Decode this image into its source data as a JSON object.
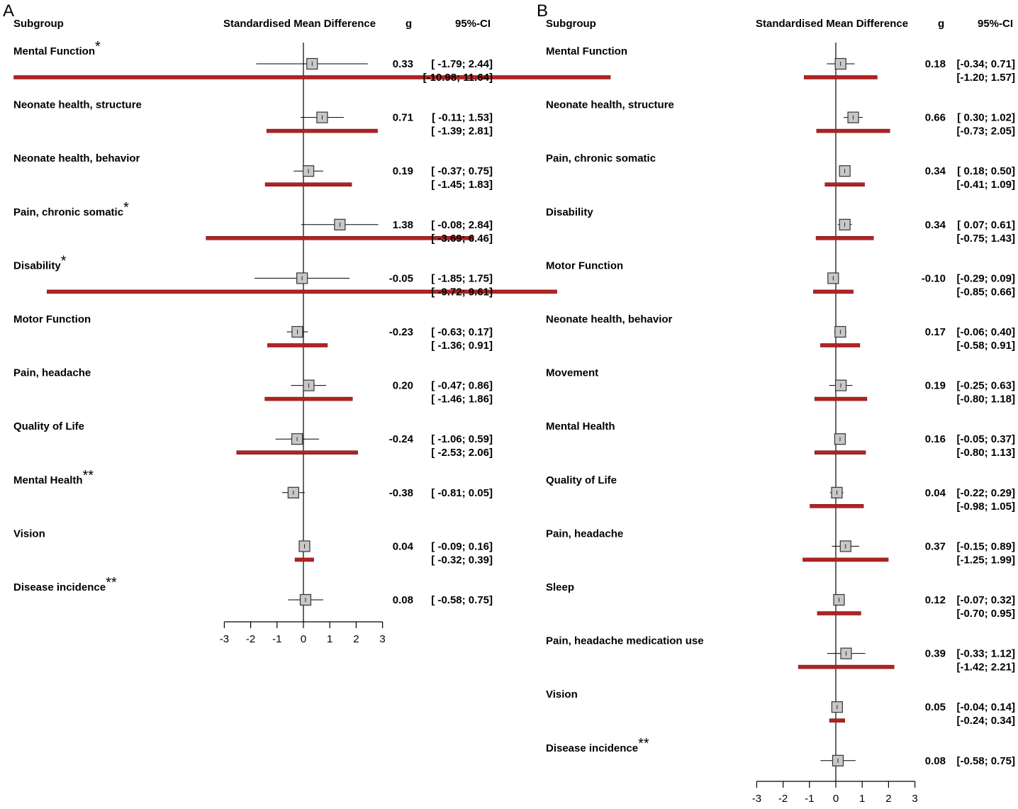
{
  "chart_data": [
    {
      "type": "forest",
      "panel": "A",
      "headers": {
        "subgroup": "Subgroup",
        "effect": "Standardised Mean Difference",
        "g": "g",
        "ci": "95%-CI"
      },
      "xlim": [
        -3,
        3
      ],
      "xticks": [
        -3,
        -2,
        -1,
        0,
        1,
        2,
        3
      ],
      "tick_labels": [
        "-3",
        "-2",
        "-1",
        "0",
        "1",
        "2",
        "3"
      ],
      "reference_line": 0,
      "rows": [
        {
          "label": "Mental Function",
          "mark": "*",
          "g": 0.33,
          "ci": [
            -1.79,
            2.44
          ],
          "pi": [
            -10.98,
            11.64
          ],
          "g_text": "0.33",
          "ci_text": "[ -1.79;  2.44]",
          "pi_text": "[-10.98; 11.64]"
        },
        {
          "label": "Neonate health, structure",
          "mark": "",
          "g": 0.71,
          "ci": [
            -0.11,
            1.53
          ],
          "pi": [
            -1.39,
            2.81
          ],
          "g_text": "0.71",
          "ci_text": "[ -0.11;  1.53]",
          "pi_text": "[ -1.39;  2.81]"
        },
        {
          "label": "Neonate health, behavior",
          "mark": "",
          "g": 0.19,
          "ci": [
            -0.37,
            0.75
          ],
          "pi": [
            -1.45,
            1.83
          ],
          "g_text": "0.19",
          "ci_text": "[ -0.37;  0.75]",
          "pi_text": "[ -1.45;  1.83]"
        },
        {
          "label": "Pain, chronic somatic",
          "mark": "*",
          "g": 1.38,
          "ci": [
            -0.08,
            2.84
          ],
          "pi": [
            -3.69,
            6.46
          ],
          "g_text": "1.38",
          "ci_text": "[ -0.08;  2.84]",
          "pi_text": "[ -3.69;  6.46]"
        },
        {
          "label": "Disability",
          "mark": "*",
          "g": -0.05,
          "ci": [
            -1.85,
            1.75
          ],
          "pi": [
            -9.72,
            9.61
          ],
          "g_text": "-0.05",
          "ci_text": "[ -1.85;  1.75]",
          "pi_text": "[ -9.72;  9.61]"
        },
        {
          "label": "Motor Function",
          "mark": "",
          "g": -0.23,
          "ci": [
            -0.63,
            0.17
          ],
          "pi": [
            -1.36,
            0.91
          ],
          "g_text": "-0.23",
          "ci_text": "[ -0.63;  0.17]",
          "pi_text": "[ -1.36;  0.91]"
        },
        {
          "label": "Pain, headache",
          "mark": "",
          "g": 0.2,
          "ci": [
            -0.47,
            0.86
          ],
          "pi": [
            -1.46,
            1.86
          ],
          "g_text": "0.20",
          "ci_text": "[ -0.47;  0.86]",
          "pi_text": "[ -1.46;  1.86]"
        },
        {
          "label": "Quality of Life",
          "mark": "",
          "g": -0.24,
          "ci": [
            -1.06,
            0.59
          ],
          "pi": [
            -2.53,
            2.06
          ],
          "g_text": "-0.24",
          "ci_text": "[ -1.06;  0.59]",
          "pi_text": "[ -2.53;  2.06]"
        },
        {
          "label": "Mental Health",
          "mark": "**",
          "g": -0.38,
          "ci": [
            -0.81,
            0.05
          ],
          "pi": null,
          "g_text": "-0.38",
          "ci_text": "[ -0.81;  0.05]",
          "pi_text": ""
        },
        {
          "label": "Vision",
          "mark": "",
          "g": 0.04,
          "ci": [
            -0.09,
            0.16
          ],
          "pi": [
            -0.32,
            0.39
          ],
          "g_text": "0.04",
          "ci_text": "[ -0.09;  0.16]",
          "pi_text": "[ -0.32;  0.39]"
        },
        {
          "label": "Disease incidence",
          "mark": "**",
          "g": 0.08,
          "ci": [
            -0.58,
            0.75
          ],
          "pi": null,
          "g_text": "0.08",
          "ci_text": "[ -0.58;  0.75]",
          "pi_text": ""
        }
      ]
    },
    {
      "type": "forest",
      "panel": "B",
      "headers": {
        "subgroup": "Subgroup",
        "effect": "Standardised Mean Difference",
        "g": "g",
        "ci": "95%-CI"
      },
      "xlim": [
        -3,
        3
      ],
      "xticks": [
        -3,
        -2,
        -1,
        0,
        1,
        2,
        3
      ],
      "tick_labels": [
        "-3",
        "-2",
        "-1",
        "0",
        "1",
        "2",
        "3"
      ],
      "reference_line": 0,
      "rows": [
        {
          "label": "Mental Function",
          "mark": "",
          "g": 0.18,
          "ci": [
            -0.34,
            0.71
          ],
          "pi": [
            -1.2,
            1.57
          ],
          "g_text": "0.18",
          "ci_text": "[-0.34;  0.71]",
          "pi_text": "[-1.20;  1.57]"
        },
        {
          "label": "Neonate health, structure",
          "mark": "",
          "g": 0.66,
          "ci": [
            0.3,
            1.02
          ],
          "pi": [
            -0.73,
            2.05
          ],
          "g_text": "0.66",
          "ci_text": "[ 0.30;  1.02]",
          "pi_text": "[-0.73;  2.05]"
        },
        {
          "label": "Pain, chronic somatic",
          "mark": "",
          "g": 0.34,
          "ci": [
            0.18,
            0.5
          ],
          "pi": [
            -0.41,
            1.09
          ],
          "g_text": "0.34",
          "ci_text": "[ 0.18;  0.50]",
          "pi_text": "[-0.41;  1.09]"
        },
        {
          "label": "Disability",
          "mark": "",
          "g": 0.34,
          "ci": [
            0.07,
            0.61
          ],
          "pi": [
            -0.75,
            1.43
          ],
          "g_text": "0.34",
          "ci_text": "[ 0.07;  0.61]",
          "pi_text": "[-0.75;  1.43]"
        },
        {
          "label": "Motor Function",
          "mark": "",
          "g": -0.1,
          "ci": [
            -0.29,
            0.09
          ],
          "pi": [
            -0.85,
            0.66
          ],
          "g_text": "-0.10",
          "ci_text": "[-0.29;  0.09]",
          "pi_text": "[-0.85;  0.66]"
        },
        {
          "label": "Neonate health, behavior",
          "mark": "",
          "g": 0.17,
          "ci": [
            -0.06,
            0.4
          ],
          "pi": [
            -0.58,
            0.91
          ],
          "g_text": "0.17",
          "ci_text": "[-0.06;  0.40]",
          "pi_text": "[-0.58;  0.91]"
        },
        {
          "label": "Movement",
          "mark": "",
          "g": 0.19,
          "ci": [
            -0.25,
            0.63
          ],
          "pi": [
            -0.8,
            1.18
          ],
          "g_text": "0.19",
          "ci_text": "[-0.25;  0.63]",
          "pi_text": "[-0.80;  1.18]"
        },
        {
          "label": "Mental Health",
          "mark": "",
          "g": 0.16,
          "ci": [
            -0.05,
            0.37
          ],
          "pi": [
            -0.8,
            1.13
          ],
          "g_text": "0.16",
          "ci_text": "[-0.05;  0.37]",
          "pi_text": "[-0.80;  1.13]"
        },
        {
          "label": "Quality of Life",
          "mark": "",
          "g": 0.04,
          "ci": [
            -0.22,
            0.29
          ],
          "pi": [
            -0.98,
            1.05
          ],
          "g_text": "0.04",
          "ci_text": "[-0.22;  0.29]",
          "pi_text": "[-0.98;  1.05]"
        },
        {
          "label": "Pain, headache",
          "mark": "",
          "g": 0.37,
          "ci": [
            -0.15,
            0.89
          ],
          "pi": [
            -1.25,
            1.99
          ],
          "g_text": "0.37",
          "ci_text": "[-0.15;  0.89]",
          "pi_text": "[-1.25;  1.99]"
        },
        {
          "label": "Sleep",
          "mark": "",
          "g": 0.12,
          "ci": [
            -0.07,
            0.32
          ],
          "pi": [
            -0.7,
            0.95
          ],
          "g_text": "0.12",
          "ci_text": "[-0.07;  0.32]",
          "pi_text": "[-0.70;  0.95]"
        },
        {
          "label": "Pain, headache medication use",
          "mark": "",
          "g": 0.39,
          "ci": [
            -0.33,
            1.12
          ],
          "pi": [
            -1.42,
            2.21
          ],
          "g_text": "0.39",
          "ci_text": "[-0.33;  1.12]",
          "pi_text": "[-1.42;  2.21]"
        },
        {
          "label": "Vision",
          "mark": "",
          "g": 0.05,
          "ci": [
            -0.04,
            0.14
          ],
          "pi": [
            -0.24,
            0.34
          ],
          "g_text": "0.05",
          "ci_text": "[-0.04;  0.14]",
          "pi_text": "[-0.24;  0.34]"
        },
        {
          "label": "Disease incidence",
          "mark": "**",
          "g": 0.08,
          "ci": [
            -0.58,
            0.75
          ],
          "pi": null,
          "g_text": "0.08",
          "ci_text": "[-0.58;  0.75]",
          "pi_text": ""
        }
      ]
    }
  ],
  "colors": {
    "pi_bar": "#b22222",
    "pi_bar_edge": "#7a1010",
    "box_fill": "#c8c8c8",
    "box_edge": "#333333"
  }
}
